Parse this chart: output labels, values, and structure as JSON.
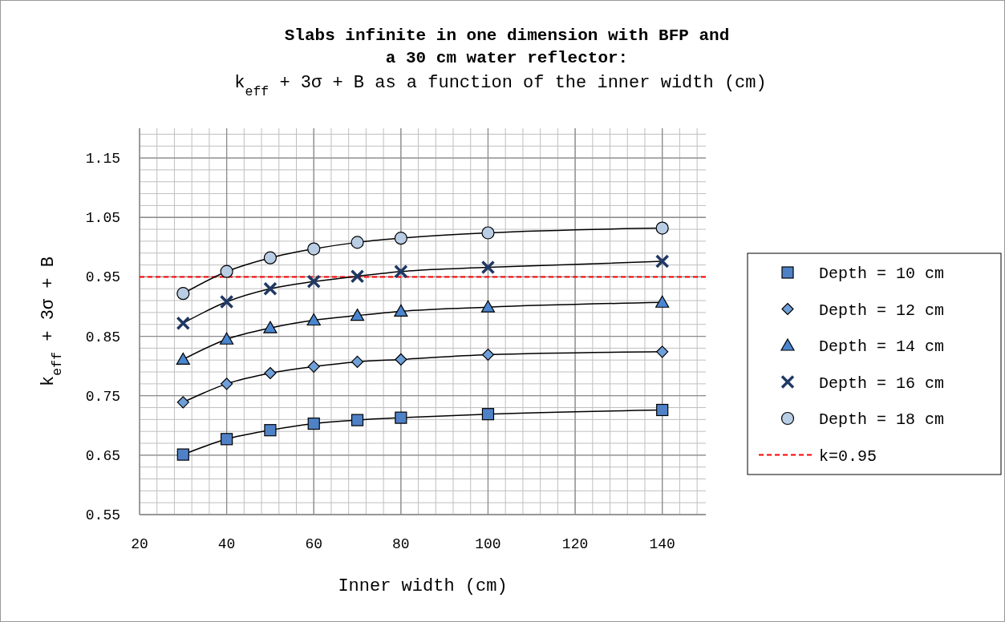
{
  "chart_data": {
    "type": "line",
    "title": "Slabs infinite in one dimension with BFP and\na 30 cm water reflector:",
    "subtitle": "k$_{eff}$ + 3σ + B  as a function of the inner width (cm)",
    "xlabel": "Inner width (cm)",
    "ylabel": "k$_{eff}$ + 3σ + B",
    "x": [
      30,
      40,
      50,
      60,
      70,
      80,
      100,
      140
    ],
    "xlim": [
      20,
      150
    ],
    "xticks": [
      20,
      40,
      60,
      80,
      100,
      120,
      140
    ],
    "ylim": [
      0.55,
      1.2
    ],
    "yticks": [
      0.55,
      0.65,
      0.75,
      0.85,
      0.95,
      1.05,
      1.15
    ],
    "grid": true,
    "legend": "right",
    "series": [
      {
        "name": "Depth = 10 cm",
        "color": "#4f81c7",
        "marker": "square",
        "values": [
          0.651,
          0.677,
          0.692,
          0.703,
          0.709,
          0.713,
          0.719,
          0.726
        ]
      },
      {
        "name": "Depth = 12 cm",
        "color": "#6f9fd8",
        "marker": "diamond",
        "values": [
          0.739,
          0.77,
          0.788,
          0.799,
          0.807,
          0.811,
          0.819,
          0.824
        ]
      },
      {
        "name": "Depth = 14 cm",
        "color": "#4a86d0",
        "marker": "triangle",
        "values": [
          0.811,
          0.845,
          0.864,
          0.877,
          0.885,
          0.892,
          0.899,
          0.907
        ]
      },
      {
        "name": "Depth = 16 cm",
        "color": "#1f3864",
        "marker": "cross",
        "values": [
          0.872,
          0.908,
          0.93,
          0.942,
          0.951,
          0.959,
          0.966,
          0.976
        ]
      },
      {
        "name": "Depth = 18 cm",
        "color": "#b9cde5",
        "marker": "circle",
        "values": [
          0.922,
          0.959,
          0.982,
          0.997,
          1.008,
          1.015,
          1.024,
          1.032
        ]
      }
    ],
    "ref_lines": [
      {
        "axis": "y",
        "value": 0.95,
        "label": "k=0.95",
        "color": "#ff0000",
        "line_style": "dashed"
      }
    ]
  }
}
